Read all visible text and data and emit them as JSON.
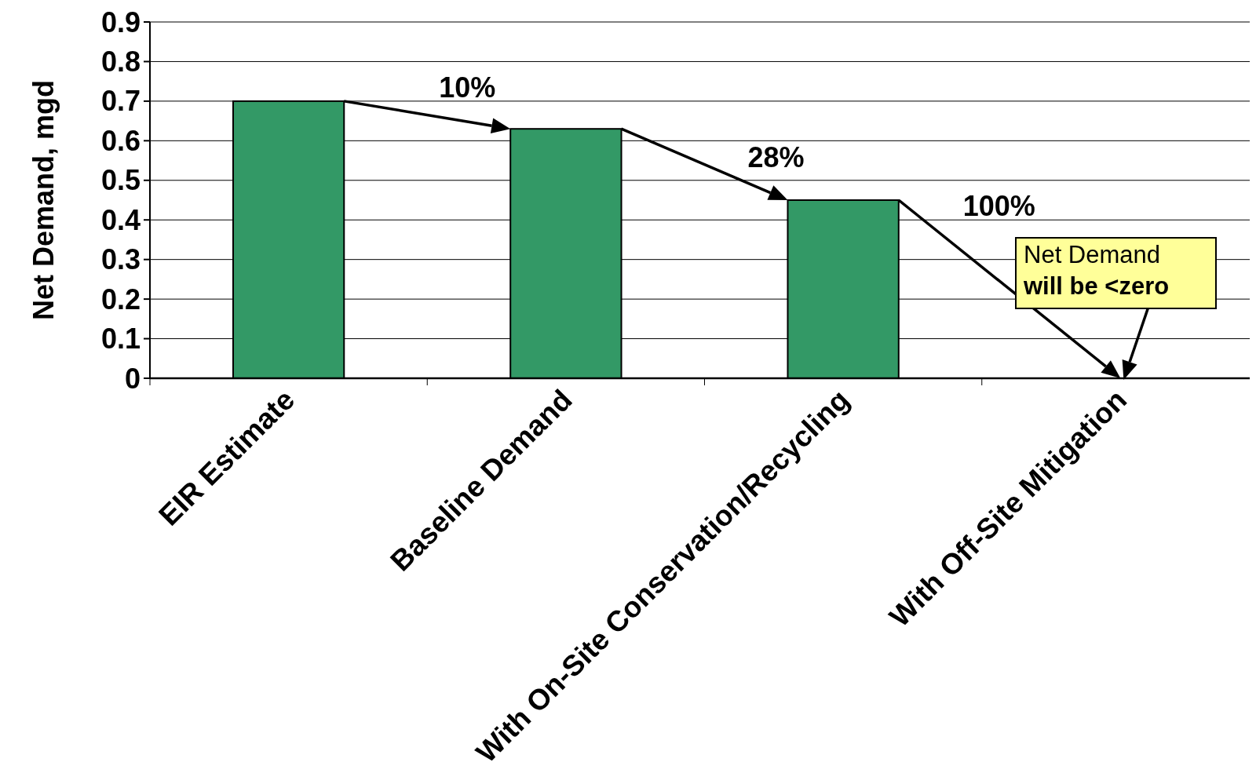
{
  "chart_data": {
    "type": "bar",
    "ylabel": "Net Demand, mgd",
    "categories": [
      "EIR Estimate",
      "Baseline Demand",
      "With On-Site Conservation/Recycling",
      "With Off-Site Mitigation"
    ],
    "values": [
      0.7,
      0.63,
      0.45,
      0
    ],
    "color": "#339966",
    "ylim": [
      0,
      0.9
    ],
    "yticks": [
      0,
      0.1,
      0.2,
      0.3,
      0.4,
      0.5,
      0.6,
      0.7,
      0.8,
      0.9
    ],
    "grid": "y",
    "annotations": [
      {
        "text": "10%",
        "x": "Baseline Demand",
        "y": 0.63
      },
      {
        "text": "28%",
        "x": "With On-Site Conservation/Recycling",
        "y": 0.45
      },
      "100%",
      "Net Demand",
      "will be <zero"
    ]
  }
}
